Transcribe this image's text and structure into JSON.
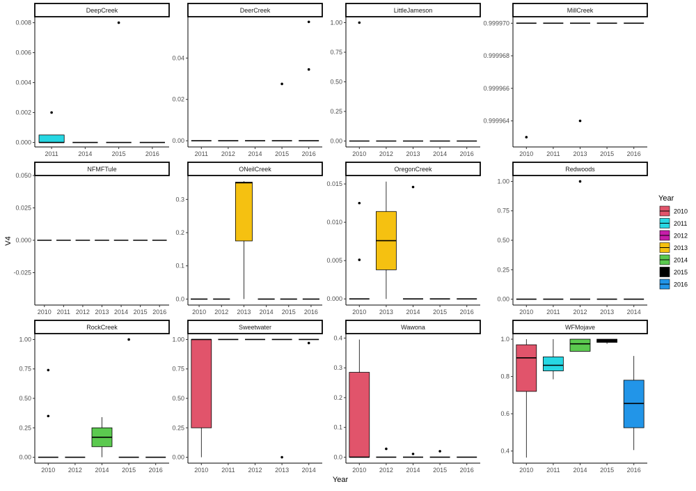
{
  "chart_data": {
    "type": "box",
    "xlabel": "Year",
    "ylabel": "V4",
    "legend": {
      "title": "Year",
      "placement": "right",
      "entries": [
        {
          "label": "2010",
          "color": "#E1546B"
        },
        {
          "label": "2011",
          "color": "#27D7E3"
        },
        {
          "label": "2012",
          "color": "#C61DA9"
        },
        {
          "label": "2013",
          "color": "#F5C111"
        },
        {
          "label": "2014",
          "color": "#5BC94F"
        },
        {
          "label": "2015",
          "color": "#000000"
        },
        {
          "label": "2016",
          "color": "#2295E8"
        }
      ]
    },
    "facets": [
      {
        "title": "DeepCreek",
        "ylim": [
          -0.0003,
          0.0084
        ],
        "yticks": [
          0,
          0.002,
          0.004,
          0.006,
          0.008
        ],
        "yticklabels": [
          "0.000",
          "0.002",
          "0.004",
          "0.006",
          "0.008"
        ],
        "categories": [
          "2011",
          "2014",
          "2015",
          "2016"
        ],
        "boxes": [
          {
            "cat": "2011",
            "q1": 0,
            "median": 0,
            "q3": 0.0005,
            "wlo": 0,
            "whi": 0.0005,
            "outliers": [
              0.002
            ]
          },
          {
            "cat": "2014",
            "q1": 0,
            "median": 0,
            "q3": 0,
            "wlo": 0,
            "whi": 0,
            "outliers": []
          },
          {
            "cat": "2015",
            "q1": 0,
            "median": 0,
            "q3": 0,
            "wlo": 0,
            "whi": 0,
            "outliers": [
              0.008
            ]
          },
          {
            "cat": "2016",
            "q1": 0,
            "median": 0,
            "q3": 0,
            "wlo": 0,
            "whi": 0,
            "outliers": []
          }
        ]
      },
      {
        "title": "DeerCreek",
        "ylim": [
          -0.003,
          0.06
        ],
        "yticks": [
          0,
          0.02,
          0.04
        ],
        "yticklabels": [
          "0.00",
          "0.02",
          "0.04"
        ],
        "categories": [
          "2011",
          "2012",
          "2014",
          "2015",
          "2016"
        ],
        "boxes": [
          {
            "cat": "2011",
            "q1": 0,
            "median": 0,
            "q3": 0,
            "wlo": 0,
            "whi": 0,
            "outliers": []
          },
          {
            "cat": "2012",
            "q1": 0,
            "median": 0,
            "q3": 0,
            "wlo": 0,
            "whi": 0,
            "outliers": []
          },
          {
            "cat": "2014",
            "q1": 0,
            "median": 0,
            "q3": 0,
            "wlo": 0,
            "whi": 0,
            "outliers": []
          },
          {
            "cat": "2015",
            "q1": 0,
            "median": 0,
            "q3": 0,
            "wlo": 0,
            "whi": 0,
            "outliers": [
              0.0275
            ]
          },
          {
            "cat": "2016",
            "q1": 0,
            "median": 0,
            "q3": 0,
            "wlo": 0,
            "whi": 0,
            "outliers": [
              0.0345,
              0.0575
            ]
          }
        ]
      },
      {
        "title": "LittleJameson",
        "ylim": [
          -0.05,
          1.05
        ],
        "yticks": [
          0,
          0.25,
          0.5,
          0.75,
          1
        ],
        "yticklabels": [
          "0.00",
          "0.25",
          "0.50",
          "0.75",
          "1.00"
        ],
        "categories": [
          "2010",
          "2012",
          "2013",
          "2014",
          "2016"
        ],
        "boxes": [
          {
            "cat": "2010",
            "q1": 0,
            "median": 0,
            "q3": 0,
            "wlo": 0,
            "whi": 0,
            "outliers": [
              1
            ]
          },
          {
            "cat": "2012",
            "q1": 0,
            "median": 0,
            "q3": 0,
            "wlo": 0,
            "whi": 0,
            "outliers": []
          },
          {
            "cat": "2013",
            "q1": 0,
            "median": 0,
            "q3": 0,
            "wlo": 0,
            "whi": 0,
            "outliers": []
          },
          {
            "cat": "2014",
            "q1": 0,
            "median": 0,
            "q3": 0,
            "wlo": 0,
            "whi": 0,
            "outliers": []
          },
          {
            "cat": "2016",
            "q1": 0,
            "median": 0,
            "q3": 0,
            "wlo": 0,
            "whi": 0,
            "outliers": []
          }
        ]
      },
      {
        "title": "MillCreek",
        "ylim": [
          0.9999624,
          0.9999704
        ],
        "yticks": [
          0.999964,
          0.999966,
          0.999968,
          0.99997
        ],
        "yticklabels": [
          "0.999964",
          "0.999966",
          "0.999968",
          "0.999970"
        ],
        "categories": [
          "2010",
          "2011",
          "2013",
          "2015",
          "2016"
        ],
        "boxes": [
          {
            "cat": "2010",
            "q1": 0.99997,
            "median": 0.99997,
            "q3": 0.99997,
            "wlo": 0.99997,
            "whi": 0.99997,
            "outliers": [
              0.999963
            ]
          },
          {
            "cat": "2011",
            "q1": 0.99997,
            "median": 0.99997,
            "q3": 0.99997,
            "wlo": 0.99997,
            "whi": 0.99997,
            "outliers": []
          },
          {
            "cat": "2013",
            "q1": 0.99997,
            "median": 0.99997,
            "q3": 0.99997,
            "wlo": 0.99997,
            "whi": 0.99997,
            "outliers": [
              0.999964
            ]
          },
          {
            "cat": "2015",
            "q1": 0.99997,
            "median": 0.99997,
            "q3": 0.99997,
            "wlo": 0.99997,
            "whi": 0.99997,
            "outliers": []
          },
          {
            "cat": "2016",
            "q1": 0.99997,
            "median": 0.99997,
            "q3": 0.99997,
            "wlo": 0.99997,
            "whi": 0.99997,
            "outliers": []
          }
        ]
      },
      {
        "title": "NFMFTule",
        "ylim": [
          -0.05,
          0.05
        ],
        "yticks": [
          -0.025,
          0,
          0.025,
          0.05
        ],
        "yticklabels": [
          "-0.025",
          "0.000",
          "0.025",
          "0.050"
        ],
        "categories": [
          "2010",
          "2011",
          "2012",
          "2013",
          "2014",
          "2015",
          "2016"
        ],
        "boxes": [
          {
            "cat": "2010",
            "q1": 0,
            "median": 0,
            "q3": 0,
            "wlo": 0,
            "whi": 0,
            "outliers": []
          },
          {
            "cat": "2011",
            "q1": 0,
            "median": 0,
            "q3": 0,
            "wlo": 0,
            "whi": 0,
            "outliers": []
          },
          {
            "cat": "2012",
            "q1": 0,
            "median": 0,
            "q3": 0,
            "wlo": 0,
            "whi": 0,
            "outliers": []
          },
          {
            "cat": "2013",
            "q1": 0,
            "median": 0,
            "q3": 0,
            "wlo": 0,
            "whi": 0,
            "outliers": []
          },
          {
            "cat": "2014",
            "q1": 0,
            "median": 0,
            "q3": 0,
            "wlo": 0,
            "whi": 0,
            "outliers": []
          },
          {
            "cat": "2015",
            "q1": 0,
            "median": 0,
            "q3": 0,
            "wlo": 0,
            "whi": 0,
            "outliers": []
          },
          {
            "cat": "2016",
            "q1": 0,
            "median": 0,
            "q3": 0,
            "wlo": 0,
            "whi": 0,
            "outliers": []
          }
        ]
      },
      {
        "title": "ONeilCreek",
        "ylim": [
          -0.018,
          0.372
        ],
        "yticks": [
          0,
          0.1,
          0.2,
          0.3
        ],
        "yticklabels": [
          "0.0",
          "0.1",
          "0.2",
          "0.3"
        ],
        "categories": [
          "2010",
          "2012",
          "2013",
          "2014",
          "2015",
          "2016"
        ],
        "boxes": [
          {
            "cat": "2010",
            "q1": 0,
            "median": 0,
            "q3": 0,
            "wlo": 0,
            "whi": 0,
            "outliers": []
          },
          {
            "cat": "2012",
            "q1": 0,
            "median": 0,
            "q3": 0,
            "wlo": 0,
            "whi": 0,
            "outliers": []
          },
          {
            "cat": "2013",
            "q1": 0.175,
            "median": 0.35,
            "q3": 0.352,
            "wlo": 0,
            "whi": 0.355,
            "outliers": []
          },
          {
            "cat": "2014",
            "q1": 0,
            "median": 0,
            "q3": 0,
            "wlo": 0,
            "whi": 0,
            "outliers": []
          },
          {
            "cat": "2015",
            "q1": 0,
            "median": 0,
            "q3": 0,
            "wlo": 0,
            "whi": 0,
            "outliers": []
          },
          {
            "cat": "2016",
            "q1": 0,
            "median": 0,
            "q3": 0,
            "wlo": 0,
            "whi": 0,
            "outliers": []
          }
        ]
      },
      {
        "title": "OregonCreek",
        "ylim": [
          -0.0008,
          0.0161
        ],
        "yticks": [
          0,
          0.005,
          0.01,
          0.015
        ],
        "yticklabels": [
          "0.000",
          "0.005",
          "0.010",
          "0.015"
        ],
        "categories": [
          "2010",
          "2013",
          "2014",
          "2015",
          "2016"
        ],
        "boxes": [
          {
            "cat": "2010",
            "q1": 0,
            "median": 0,
            "q3": 0,
            "wlo": 0,
            "whi": 0,
            "outliers": [
              0.0051,
              0.0125
            ]
          },
          {
            "cat": "2013",
            "q1": 0.0038,
            "median": 0.0076,
            "q3": 0.0114,
            "wlo": 0,
            "whi": 0.0153,
            "outliers": []
          },
          {
            "cat": "2014",
            "q1": 0,
            "median": 0,
            "q3": 0,
            "wlo": 0,
            "whi": 0,
            "outliers": [
              0.0146
            ]
          },
          {
            "cat": "2015",
            "q1": 0,
            "median": 0,
            "q3": 0,
            "wlo": 0,
            "whi": 0,
            "outliers": []
          },
          {
            "cat": "2016",
            "q1": 0,
            "median": 0,
            "q3": 0,
            "wlo": 0,
            "whi": 0,
            "outliers": []
          }
        ]
      },
      {
        "title": "Redwoods",
        "ylim": [
          -0.05,
          1.05
        ],
        "yticks": [
          0,
          0.25,
          0.5,
          0.75,
          1
        ],
        "yticklabels": [
          "0.00",
          "0.25",
          "0.50",
          "0.75",
          "1.00"
        ],
        "categories": [
          "2010",
          "2011",
          "2012",
          "2013",
          "2014"
        ],
        "boxes": [
          {
            "cat": "2010",
            "q1": 0,
            "median": 0,
            "q3": 0,
            "wlo": 0,
            "whi": 0,
            "outliers": []
          },
          {
            "cat": "2011",
            "q1": 0,
            "median": 0,
            "q3": 0,
            "wlo": 0,
            "whi": 0,
            "outliers": []
          },
          {
            "cat": "2012",
            "q1": 0,
            "median": 0,
            "q3": 0,
            "wlo": 0,
            "whi": 0,
            "outliers": [
              1
            ]
          },
          {
            "cat": "2013",
            "q1": 0,
            "median": 0,
            "q3": 0,
            "wlo": 0,
            "whi": 0,
            "outliers": []
          },
          {
            "cat": "2014",
            "q1": 0,
            "median": 0,
            "q3": 0,
            "wlo": 0,
            "whi": 0,
            "outliers": []
          }
        ]
      },
      {
        "title": "RockCreek",
        "ylim": [
          -0.05,
          1.05
        ],
        "yticks": [
          0,
          0.25,
          0.5,
          0.75,
          1
        ],
        "yticklabels": [
          "0.00",
          "0.25",
          "0.50",
          "0.75",
          "1.00"
        ],
        "categories": [
          "2010",
          "2012",
          "2014",
          "2015",
          "2016"
        ],
        "boxes": [
          {
            "cat": "2010",
            "q1": 0,
            "median": 0,
            "q3": 0,
            "wlo": 0,
            "whi": 0,
            "outliers": [
              0.35,
              0.74
            ]
          },
          {
            "cat": "2012",
            "q1": 0,
            "median": 0,
            "q3": 0,
            "wlo": 0,
            "whi": 0,
            "outliers": []
          },
          {
            "cat": "2014",
            "q1": 0.09,
            "median": 0.17,
            "q3": 0.25,
            "wlo": 0,
            "whi": 0.34,
            "outliers": []
          },
          {
            "cat": "2015",
            "q1": 0,
            "median": 0,
            "q3": 0,
            "wlo": 0,
            "whi": 0,
            "outliers": [
              1
            ]
          },
          {
            "cat": "2016",
            "q1": 0,
            "median": 0,
            "q3": 0,
            "wlo": 0,
            "whi": 0,
            "outliers": []
          }
        ]
      },
      {
        "title": "Sweetwater",
        "ylim": [
          -0.05,
          1.05
        ],
        "yticks": [
          0,
          0.25,
          0.5,
          0.75,
          1
        ],
        "yticklabels": [
          "0.00",
          "0.25",
          "0.50",
          "0.75",
          "1.00"
        ],
        "categories": [
          "2010",
          "2011",
          "2012",
          "2013",
          "2014"
        ],
        "boxes": [
          {
            "cat": "2010",
            "q1": 0.25,
            "median": 1,
            "q3": 1,
            "wlo": 0,
            "whi": 1,
            "outliers": []
          },
          {
            "cat": "2011",
            "q1": 1,
            "median": 1,
            "q3": 1,
            "wlo": 1,
            "whi": 1,
            "outliers": []
          },
          {
            "cat": "2012",
            "q1": 1,
            "median": 1,
            "q3": 1,
            "wlo": 1,
            "whi": 1,
            "outliers": []
          },
          {
            "cat": "2013",
            "q1": 1,
            "median": 1,
            "q3": 1,
            "wlo": 1,
            "whi": 1,
            "outliers": [
              0
            ]
          },
          {
            "cat": "2014",
            "q1": 1,
            "median": 1,
            "q3": 1,
            "wlo": 1,
            "whi": 1,
            "outliers": [
              0.97
            ]
          }
        ]
      },
      {
        "title": "Wawona",
        "ylim": [
          -0.02,
          0.415
        ],
        "yticks": [
          0,
          0.1,
          0.2,
          0.3,
          0.4
        ],
        "yticklabels": [
          "0.0",
          "0.1",
          "0.2",
          "0.3",
          "0.4"
        ],
        "categories": [
          "2010",
          "2012",
          "2014",
          "2015",
          "2016"
        ],
        "boxes": [
          {
            "cat": "2010",
            "q1": 0,
            "median": 0,
            "q3": 0.285,
            "wlo": 0,
            "whi": 0.395,
            "outliers": []
          },
          {
            "cat": "2012",
            "q1": 0,
            "median": 0,
            "q3": 0,
            "wlo": 0,
            "whi": 0,
            "outliers": [
              0.028
            ]
          },
          {
            "cat": "2014",
            "q1": 0,
            "median": 0,
            "q3": 0,
            "wlo": 0,
            "whi": 0,
            "outliers": [
              0.011
            ]
          },
          {
            "cat": "2015",
            "q1": 0,
            "median": 0,
            "q3": 0,
            "wlo": 0,
            "whi": 0,
            "outliers": [
              0.02
            ]
          },
          {
            "cat": "2016",
            "q1": 0,
            "median": 0,
            "q3": 0,
            "wlo": 0,
            "whi": 0,
            "outliers": []
          }
        ]
      },
      {
        "title": "WFMojave",
        "ylim": [
          0.335,
          1.03
        ],
        "yticks": [
          0.4,
          0.6,
          0.8,
          1
        ],
        "yticklabels": [
          "0.4",
          "0.6",
          "0.8",
          "1.0"
        ],
        "categories": [
          "2010",
          "2011",
          "2014",
          "2015",
          "2016"
        ],
        "boxes": [
          {
            "cat": "2010",
            "q1": 0.72,
            "median": 0.9,
            "q3": 0.97,
            "wlo": 0.365,
            "whi": 1.0,
            "outliers": []
          },
          {
            "cat": "2011",
            "q1": 0.83,
            "median": 0.86,
            "q3": 0.905,
            "wlo": 0.785,
            "whi": 1.0,
            "outliers": []
          },
          {
            "cat": "2014",
            "q1": 0.935,
            "median": 0.975,
            "q3": 1.0,
            "wlo": 0.935,
            "whi": 1.0,
            "outliers": []
          },
          {
            "cat": "2015",
            "q1": 0.983,
            "median": 0.99,
            "q3": 1.0,
            "wlo": 0.975,
            "whi": 1.0,
            "outliers": []
          },
          {
            "cat": "2016",
            "q1": 0.525,
            "median": 0.655,
            "q3": 0.78,
            "wlo": 0.405,
            "whi": 0.91,
            "outliers": []
          }
        ]
      }
    ]
  }
}
